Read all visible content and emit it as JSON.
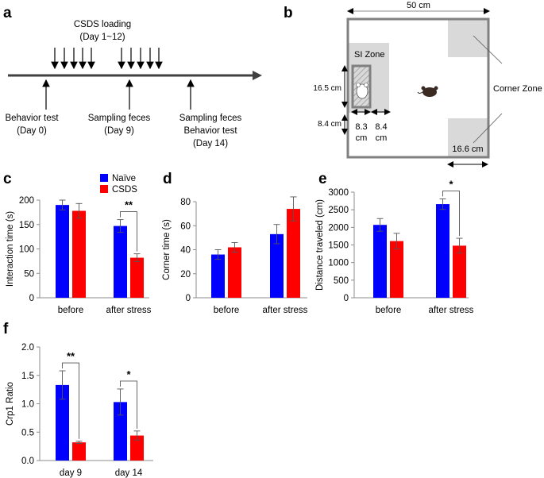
{
  "panel_labels": {
    "a": "a",
    "b": "b",
    "c": "c",
    "d": "d",
    "e": "e",
    "f": "f"
  },
  "timeline": {
    "loading_title": "CSDS loading",
    "loading_days": "(Day 1~12)",
    "events": [
      {
        "line1": "Behavior test",
        "line2": "(Day 0)",
        "line3": ""
      },
      {
        "line1": "Sampling feces",
        "line2": "(Day 9)",
        "line3": ""
      },
      {
        "line1": "Sampling feces",
        "line2": "Behavior test",
        "line3": "(Day 14)"
      }
    ]
  },
  "arena": {
    "width_label": "50 cm",
    "si_zone_label": "SI Zone",
    "corner_zone_label": "Corner Zone",
    "dim_height_cage": "16.5 cm",
    "dim_height_zone": "8.4 cm",
    "dim_cage_width_value": "8.3",
    "dim_cage_width_unit": "cm",
    "dim_zone_width_value": "8.4",
    "dim_zone_width_unit": "cm",
    "corner_width_label": "16.6 cm",
    "mouse_icon": "mouse-icon"
  },
  "legend": {
    "naive": "Naïve",
    "csds": "CSDS"
  },
  "colors": {
    "naive": "#0000ff",
    "csds": "#ff0000",
    "axis": "#8c8c8c",
    "zone": "#d9d9d9",
    "wall": "#808080"
  },
  "chart_data": [
    {
      "id": "c",
      "type": "bar",
      "title": "",
      "ylabel": "Interaction time (s)",
      "ylim": [
        0,
        200
      ],
      "yticks": [
        "0",
        "50",
        "100",
        "150",
        "200"
      ],
      "categories": [
        "before",
        "after stress"
      ],
      "series": [
        {
          "name": "Naïve",
          "values": [
            190,
            147
          ],
          "errors": [
            10,
            13
          ]
        },
        {
          "name": "CSDS",
          "values": [
            178,
            82
          ],
          "errors": [
            15,
            8
          ]
        }
      ],
      "annotations": [
        {
          "text": "**",
          "category_index": 1
        }
      ]
    },
    {
      "id": "d",
      "type": "bar",
      "title": "",
      "ylabel": "Corner time (s)",
      "ylim": [
        0,
        80
      ],
      "yticks": [
        "0",
        "20",
        "40",
        "60",
        "80"
      ],
      "categories": [
        "before",
        "after stress"
      ],
      "series": [
        {
          "name": "Naïve",
          "values": [
            36,
            53
          ],
          "errors": [
            4,
            8
          ]
        },
        {
          "name": "CSDS",
          "values": [
            42,
            74
          ],
          "errors": [
            4,
            10
          ]
        }
      ],
      "annotations": []
    },
    {
      "id": "e",
      "type": "bar",
      "title": "",
      "ylabel": "Distance traveled (cm)",
      "ylim": [
        0,
        3000
      ],
      "yticks": [
        "0",
        "500",
        "1000",
        "1500",
        "2000",
        "2500",
        "3000"
      ],
      "categories": [
        "before",
        "after stress"
      ],
      "series": [
        {
          "name": "Naïve",
          "values": [
            2070,
            2660
          ],
          "errors": [
            180,
            150
          ]
        },
        {
          "name": "CSDS",
          "values": [
            1610,
            1480
          ],
          "errors": [
            220,
            210
          ]
        }
      ],
      "annotations": [
        {
          "text": "*",
          "category_index": 1
        }
      ]
    },
    {
      "id": "f",
      "type": "bar",
      "title": "",
      "ylabel": "Crp1 Ratio",
      "ylim": [
        0,
        2.0
      ],
      "yticks": [
        "0.0",
        "0.5",
        "1.0",
        "1.5",
        "2.0"
      ],
      "categories": [
        "day 9",
        "day 14"
      ],
      "series": [
        {
          "name": "Naïve",
          "values": [
            1.33,
            1.03
          ],
          "errors": [
            0.25,
            0.23
          ]
        },
        {
          "name": "CSDS",
          "values": [
            0.32,
            0.44
          ],
          "errors": [
            0.02,
            0.08
          ]
        }
      ],
      "annotations": [
        {
          "text": "**",
          "category_index": 0
        },
        {
          "text": "*",
          "category_index": 1
        }
      ]
    }
  ]
}
